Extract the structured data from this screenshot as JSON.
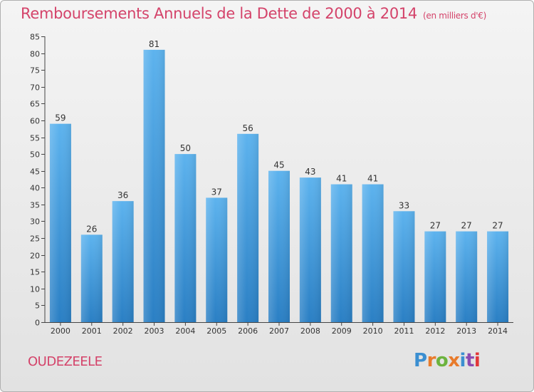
{
  "header": {
    "title": "Remboursements Annuels de la Dette de 2000 à 2014",
    "subtitle": "(en milliers d'€)"
  },
  "footer": {
    "commune": "OUDEZEELE",
    "brand": "Proxiti"
  },
  "colors": {
    "title": "#d4436a",
    "bar_top": "#5db3ee",
    "bar_bottom": "#2a7fc4",
    "logo": [
      "#3b8fd1",
      "#e87b2c",
      "#6cb33e",
      "#e87b2c",
      "#3b8fd1",
      "#8c4bb1",
      "#e2373a"
    ]
  },
  "chart_data": {
    "type": "bar",
    "title": "Remboursements Annuels de la Dette de 2000 à 2014",
    "xlabel": "",
    "ylabel": "",
    "categories": [
      "2000",
      "2001",
      "2002",
      "2003",
      "2004",
      "2005",
      "2006",
      "2007",
      "2008",
      "2009",
      "2010",
      "2011",
      "2012",
      "2013",
      "2014"
    ],
    "values": [
      59,
      26,
      36,
      81,
      50,
      37,
      56,
      45,
      43,
      41,
      41,
      33,
      27,
      27,
      27
    ],
    "ylim": [
      0,
      85
    ],
    "yticks": [
      0,
      5,
      10,
      15,
      20,
      25,
      30,
      35,
      40,
      45,
      50,
      55,
      60,
      65,
      70,
      75,
      80,
      85
    ],
    "grid": false,
    "legend": "none"
  }
}
